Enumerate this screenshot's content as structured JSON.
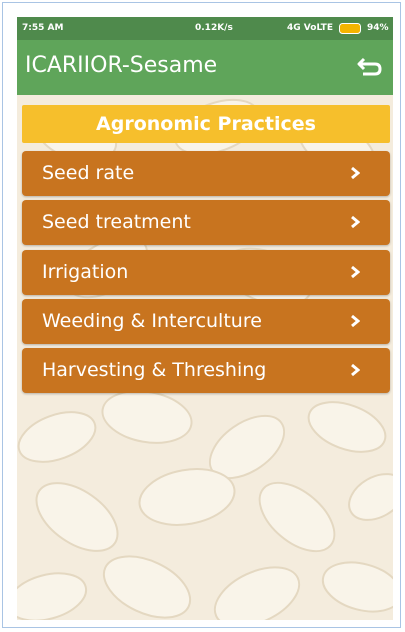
{
  "status_bar": {
    "time": "7:55 AM",
    "speed": "0.12K/s",
    "network": "4G VoLTE",
    "battery": "94%"
  },
  "app_bar": {
    "title": "ICARIIOR-Sesame"
  },
  "section": {
    "title": "Agronomic Practices"
  },
  "menu": {
    "items": [
      "Seed rate",
      "Seed treatment",
      "Irrigation",
      "Weeding & Interculture",
      "Harvesting & Threshing"
    ]
  }
}
